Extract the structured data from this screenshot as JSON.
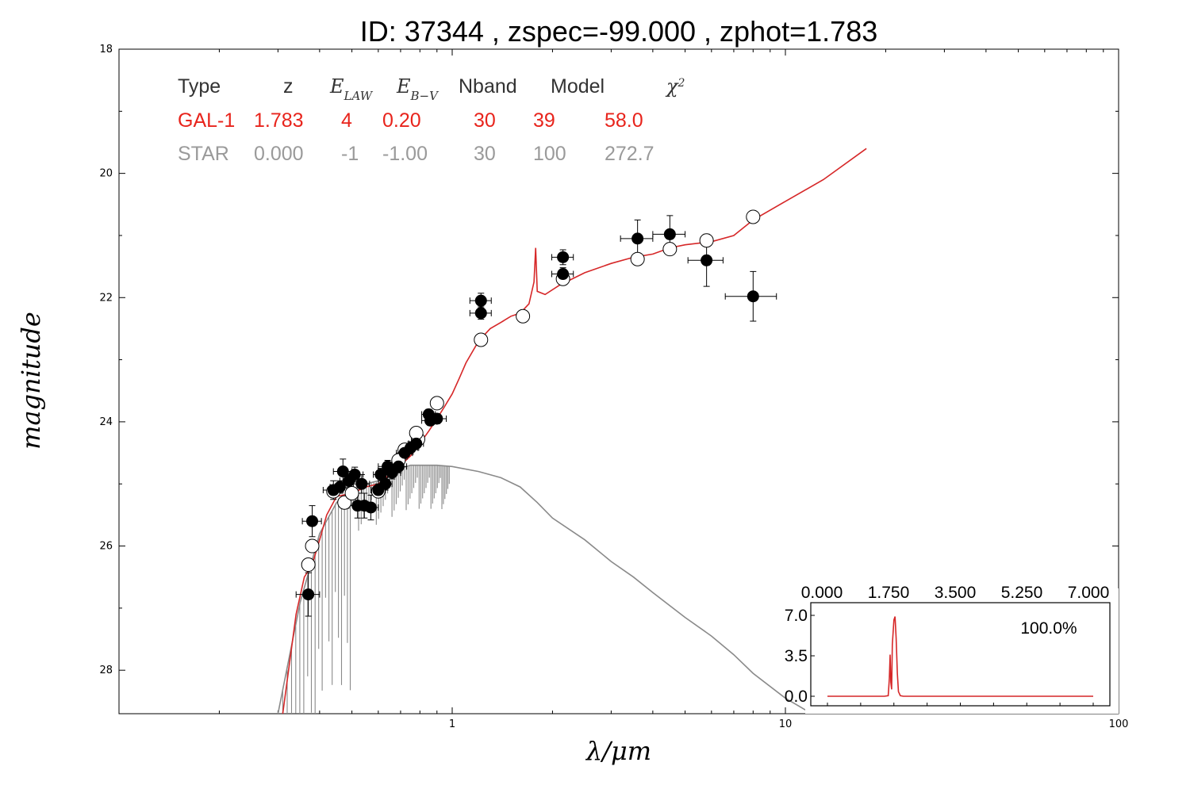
{
  "chart_data": [
    {
      "type": "scatter",
      "title": "ID:  37344 , zspec=-99.000 , zphot=1.783",
      "xlabel": "λ/μm",
      "ylabel": "magnitude",
      "x_scale": "log",
      "xlim": [
        0.1,
        100
      ],
      "ylim": [
        28.7,
        18
      ],
      "y_inverted": true,
      "x_tick_labels": [
        {
          "value": 1,
          "label": "1"
        },
        {
          "value": 10,
          "label": "10"
        },
        {
          "value": 100,
          "label": "100"
        }
      ],
      "y_tick_labels": [
        {
          "value": 18,
          "label": "18"
        },
        {
          "value": 20,
          "label": "20"
        },
        {
          "value": 22,
          "label": "22"
        },
        {
          "value": 24,
          "label": "24"
        },
        {
          "value": 26,
          "label": "26"
        },
        {
          "value": 28,
          "label": "28"
        }
      ],
      "fit_table": {
        "headers": [
          "Type",
          "z",
          "E_LAW",
          "E_B-V",
          "Nband",
          "Model",
          "χ²"
        ],
        "rows": [
          {
            "cells": [
              "GAL-1",
              "1.783",
              "4",
              "0.20",
              "30",
              "39",
              "58.0"
            ],
            "color": "#e8241c"
          },
          {
            "cells": [
              "STAR",
              "0.000",
              "-1",
              "-1.00",
              "30",
              "100",
              "272.7"
            ],
            "color": "#9a9a9a"
          }
        ]
      },
      "series": [
        {
          "kind": "galaxy-model-line",
          "color": "#d62728",
          "x": [
            0.31,
            0.34,
            0.36,
            0.38,
            0.4,
            0.42,
            0.45,
            0.5,
            0.55,
            0.6,
            0.65,
            0.7,
            0.75,
            0.8,
            0.85,
            0.9,
            0.95,
            1.0,
            1.05,
            1.1,
            1.2,
            1.3,
            1.4,
            1.5,
            1.6,
            1.7,
            1.76,
            1.78,
            1.8,
            1.9,
            2.1,
            2.5,
            3.0,
            3.5,
            4.0,
            4.5,
            5.0,
            6.0,
            7.0,
            8.0,
            10.0,
            13.0,
            17.5
          ],
          "y": [
            28.7,
            27.1,
            26.5,
            26.3,
            25.9,
            25.5,
            25.2,
            25.15,
            25.05,
            25.0,
            24.85,
            24.7,
            24.55,
            24.35,
            24.15,
            23.95,
            23.75,
            23.55,
            23.3,
            23.05,
            22.7,
            22.5,
            22.4,
            22.3,
            22.25,
            22.1,
            21.75,
            21.2,
            21.9,
            21.95,
            21.8,
            21.6,
            21.45,
            21.35,
            21.3,
            21.2,
            21.15,
            21.1,
            21.0,
            20.75,
            20.45,
            20.1,
            19.6
          ]
        },
        {
          "kind": "star-model-line",
          "color": "#8a8a8a",
          "x": [
            0.3,
            0.35,
            0.4,
            0.45,
            0.5,
            0.55,
            0.6,
            0.65,
            0.7,
            0.75,
            0.8,
            0.9,
            1.0,
            1.2,
            1.4,
            1.6,
            1.8,
            2.0,
            2.5,
            3.0,
            3.5,
            4.0,
            5.0,
            6.0,
            7.0,
            8.0,
            10.0,
            12.0
          ],
          "y": [
            28.7,
            26.9,
            25.8,
            25.3,
            25.1,
            25.0,
            24.95,
            24.85,
            24.75,
            24.7,
            24.7,
            24.7,
            24.72,
            24.8,
            24.9,
            25.05,
            25.3,
            25.55,
            25.9,
            26.25,
            26.5,
            26.75,
            27.15,
            27.45,
            27.75,
            28.05,
            28.45,
            28.7
          ]
        },
        {
          "kind": "observed-magnitudes",
          "marker": "filled-circle",
          "color": "#000000",
          "points": [
            {
              "x": 0.37,
              "y": 26.78,
              "xerr": 0.03,
              "yerr": 0.35
            },
            {
              "x": 0.38,
              "y": 25.6,
              "xerr": 0.025,
              "yerr": 0.25
            },
            {
              "x": 0.44,
              "y": 25.1,
              "xerr": 0.03,
              "yerr": 0.15
            },
            {
              "x": 0.46,
              "y": 25.05,
              "xerr": 0.03,
              "yerr": 0.1
            },
            {
              "x": 0.47,
              "y": 24.8,
              "xerr": 0.03,
              "yerr": 0.2
            },
            {
              "x": 0.49,
              "y": 24.95,
              "xerr": 0.03,
              "yerr": 0.12
            },
            {
              "x": 0.51,
              "y": 24.85,
              "xerr": 0.03,
              "yerr": 0.12
            },
            {
              "x": 0.52,
              "y": 25.35,
              "xerr": 0.03,
              "yerr": 0.2
            },
            {
              "x": 0.535,
              "y": 25.0,
              "xerr": 0.03,
              "yerr": 0.15
            },
            {
              "x": 0.545,
              "y": 25.35,
              "xerr": 0.03,
              "yerr": 0.2
            },
            {
              "x": 0.57,
              "y": 25.38,
              "xerr": 0.03,
              "yerr": 0.2
            },
            {
              "x": 0.6,
              "y": 25.1,
              "xerr": 0.03,
              "yerr": 0.1
            },
            {
              "x": 0.61,
              "y": 24.85,
              "xerr": 0.03,
              "yerr": 0.1
            },
            {
              "x": 0.63,
              "y": 25.0,
              "xerr": 0.03,
              "yerr": 0.1
            },
            {
              "x": 0.64,
              "y": 24.72,
              "xerr": 0.04,
              "yerr": 0.1
            },
            {
              "x": 0.66,
              "y": 24.82,
              "xerr": 0.04,
              "yerr": 0.1
            },
            {
              "x": 0.69,
              "y": 24.72,
              "xerr": 0.04,
              "yerr": 0.1
            },
            {
              "x": 0.72,
              "y": 24.5,
              "xerr": 0.04,
              "yerr": 0.1
            },
            {
              "x": 0.75,
              "y": 24.42,
              "xerr": 0.04,
              "yerr": 0.1
            },
            {
              "x": 0.78,
              "y": 24.35,
              "xerr": 0.04,
              "yerr": 0.1
            },
            {
              "x": 0.85,
              "y": 23.88,
              "xerr": 0.04,
              "yerr": 0.08
            },
            {
              "x": 0.86,
              "y": 23.98,
              "xerr": 0.05,
              "yerr": 0.08
            },
            {
              "x": 0.9,
              "y": 23.95,
              "xerr": 0.06,
              "yerr": 0.08
            },
            {
              "x": 1.22,
              "y": 22.05,
              "xerr": 0.09,
              "yerr": 0.12
            },
            {
              "x": 1.22,
              "y": 22.25,
              "xerr": 0.09,
              "yerr": 0.1
            },
            {
              "x": 2.15,
              "y": 21.35,
              "xerr": 0.16,
              "yerr": 0.12
            },
            {
              "x": 2.15,
              "y": 21.62,
              "xerr": 0.16,
              "yerr": 0.1
            },
            {
              "x": 3.6,
              "y": 21.05,
              "xerr": 0.4,
              "yerr": 0.3
            },
            {
              "x": 4.5,
              "y": 20.98,
              "xerr": 0.5,
              "yerr": 0.3
            },
            {
              "x": 5.8,
              "y": 21.4,
              "xerr": 0.7,
              "yerr": 0.42
            },
            {
              "x": 8.0,
              "y": 21.98,
              "xerr": 1.4,
              "yerr": 0.4
            }
          ]
        },
        {
          "kind": "model-magnitudes",
          "marker": "open-circle",
          "color": "#000000",
          "points": [
            {
              "x": 0.37,
              "y": 26.3
            },
            {
              "x": 0.38,
              "y": 26.0
            },
            {
              "x": 0.44,
              "y": 25.12
            },
            {
              "x": 0.475,
              "y": 25.3
            },
            {
              "x": 0.5,
              "y": 25.15
            },
            {
              "x": 0.6,
              "y": 25.12
            },
            {
              "x": 0.69,
              "y": 24.62
            },
            {
              "x": 0.72,
              "y": 24.45
            },
            {
              "x": 0.79,
              "y": 24.28
            },
            {
              "x": 0.78,
              "y": 24.18
            },
            {
              "x": 0.9,
              "y": 23.7
            },
            {
              "x": 1.22,
              "y": 22.68
            },
            {
              "x": 1.63,
              "y": 22.3
            },
            {
              "x": 2.15,
              "y": 21.7
            },
            {
              "x": 3.6,
              "y": 21.38
            },
            {
              "x": 4.5,
              "y": 21.22
            },
            {
              "x": 5.8,
              "y": 21.08
            },
            {
              "x": 8.0,
              "y": 20.7
            }
          ]
        }
      ]
    },
    {
      "type": "line",
      "title": "",
      "xlim": [
        0,
        7
      ],
      "ylim": [
        0,
        7
      ],
      "x_tick_labels": [
        "0.000",
        "1.750",
        "3.500",
        "5.250",
        "7.000"
      ],
      "y_tick_labels": [
        "0.0",
        "3.5",
        "7.0"
      ],
      "annotation": "100.0%",
      "series": [
        {
          "kind": "redshift-pdf",
          "color": "#d62728",
          "x": [
            0.0,
            1.5,
            1.6,
            1.63,
            1.65,
            1.67,
            1.69,
            1.71,
            1.75,
            1.78,
            1.81,
            1.84,
            1.87,
            1.92,
            2.0,
            7.0
          ],
          "y": [
            0.0,
            0.0,
            0.05,
            1.5,
            3.6,
            1.2,
            0.6,
            4.5,
            6.6,
            6.9,
            5.0,
            2.0,
            0.4,
            0.05,
            0.0,
            0.0
          ]
        }
      ]
    }
  ]
}
